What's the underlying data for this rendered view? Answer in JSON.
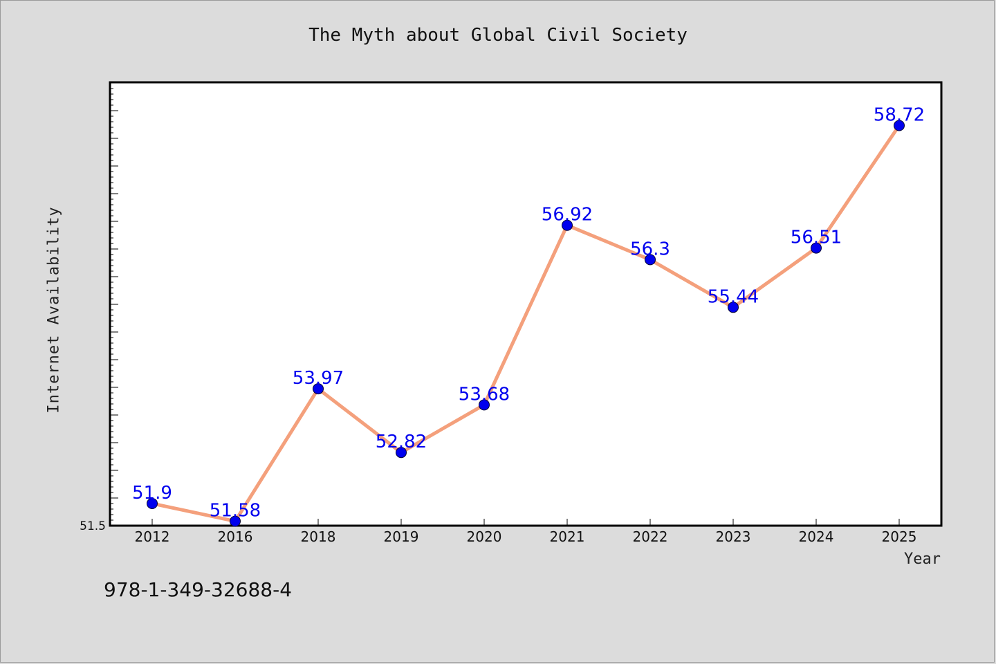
{
  "chart_data": {
    "type": "line",
    "title": "The Myth about Global Civil Society",
    "xlabel": "Year",
    "ylabel": "Internet Availability",
    "categories": [
      "2012",
      "2016",
      "2018",
      "2019",
      "2020",
      "2021",
      "2022",
      "2023",
      "2024",
      "2025"
    ],
    "series": [
      {
        "values": [
          51.9,
          51.58,
          53.97,
          52.82,
          53.68,
          56.92,
          56.3,
          55.44,
          56.51,
          58.72
        ],
        "labels": [
          "51.9",
          "51.58",
          "53.97",
          "52.82",
          "53.68",
          "56.92",
          "56.3",
          "55.44",
          "56.51",
          "58.72"
        ]
      }
    ],
    "y_tick_labels": [
      "51.5"
    ],
    "ylim": [
      51.5,
      59.5
    ],
    "grid": false,
    "line_color": "#f4a07c",
    "marker_color": "#0000ee",
    "label_color": "#0000ee"
  },
  "footer_text": "978-1-349-32688-4"
}
